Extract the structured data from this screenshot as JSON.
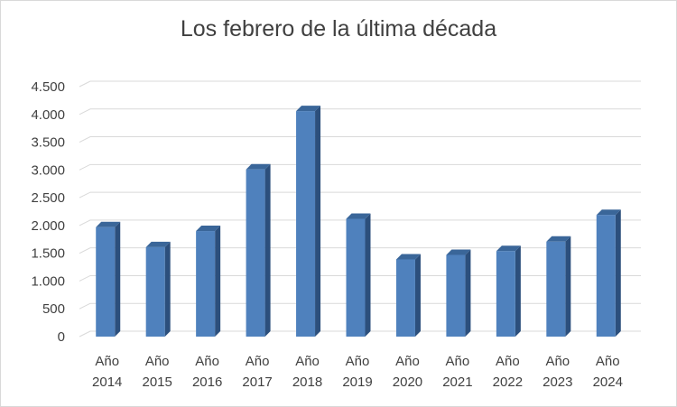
{
  "chart_data": {
    "type": "bar",
    "title": "Los febrero de la última década",
    "xlabel": "",
    "ylabel": "",
    "ylim": [
      0,
      4500
    ],
    "yticks": [
      0,
      500,
      1000,
      1500,
      2000,
      2500,
      3000,
      3500,
      4000,
      4500
    ],
    "ytick_labels": [
      "0",
      "500",
      "1.000",
      "1.500",
      "2.000",
      "2.500",
      "3.000",
      "3.500",
      "4.000",
      "4.500"
    ],
    "categories": [
      [
        "Año",
        "2014"
      ],
      [
        "Año",
        "2015"
      ],
      [
        "Año",
        "2016"
      ],
      [
        "Año",
        "2017"
      ],
      [
        "Año",
        "2018"
      ],
      [
        "Año",
        "2019"
      ],
      [
        "Año",
        "2020"
      ],
      [
        "Año",
        "2021"
      ],
      [
        "Año",
        "2022"
      ],
      [
        "Año",
        "2023"
      ],
      [
        "Año",
        "2024"
      ]
    ],
    "values": [
      1970,
      1610,
      1900,
      3010,
      4060,
      2120,
      1390,
      1470,
      1540,
      1710,
      2190
    ],
    "grid": true,
    "legend": "none",
    "style": "3d-column",
    "colors": {
      "front": "#4f81bd",
      "side": "#2c4f7c",
      "top": "#3a6699",
      "grid": "#d9d9d9"
    }
  }
}
